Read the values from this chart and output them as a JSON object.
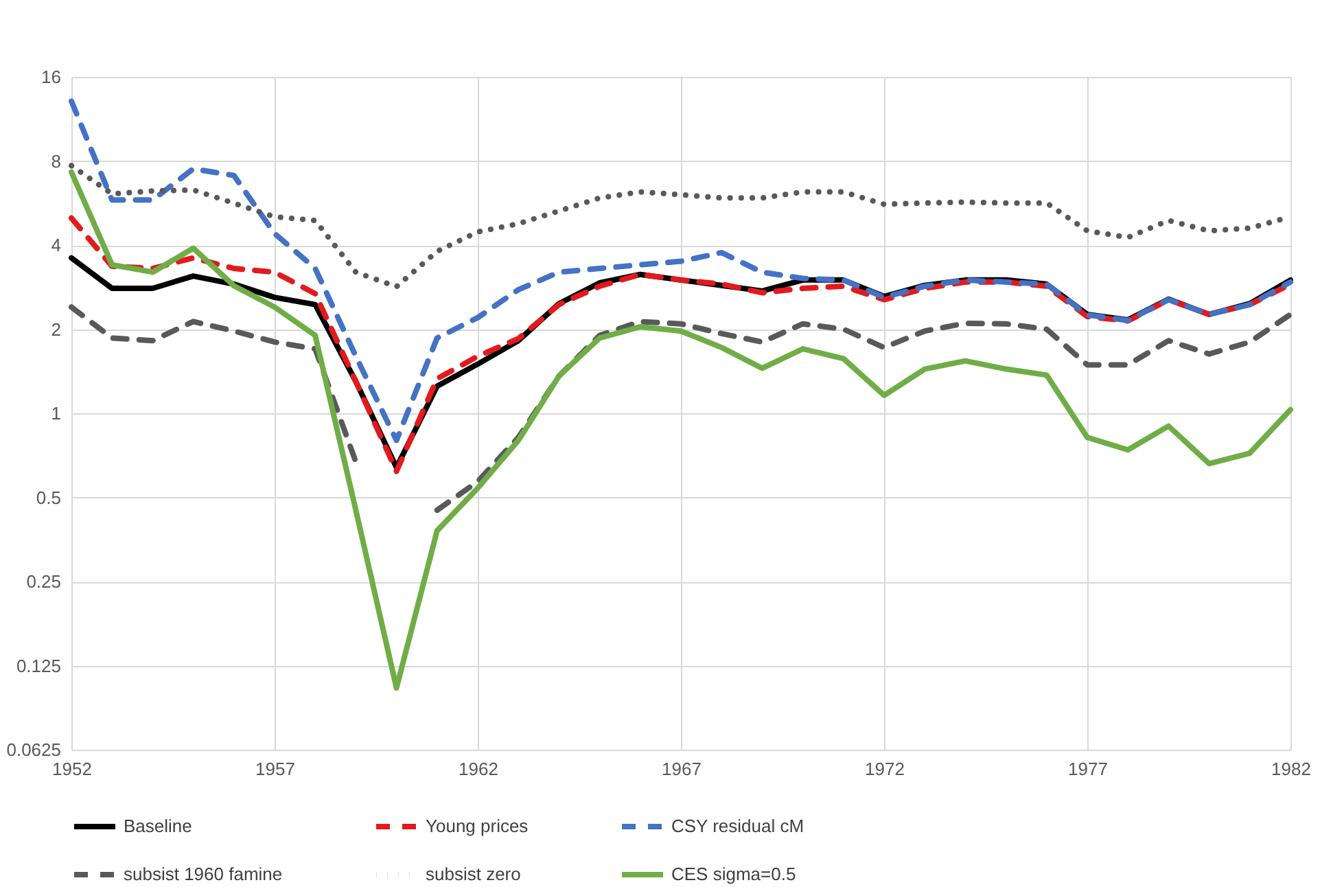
{
  "chart_data": {
    "type": "line",
    "x": [
      1952,
      1953,
      1954,
      1955,
      1956,
      1957,
      1958,
      1959,
      1960,
      1961,
      1962,
      1963,
      1964,
      1965,
      1966,
      1967,
      1968,
      1969,
      1970,
      1971,
      1972,
      1973,
      1974,
      1975,
      1976,
      1977,
      1978,
      1979,
      1980,
      1981,
      1982
    ],
    "log": true,
    "xlim": [
      1952,
      1982
    ],
    "xticks": [
      1952,
      1957,
      1962,
      1967,
      1972,
      1977,
      1982
    ],
    "ylim": [
      0.0625,
      16
    ],
    "yticks": [
      0.0625,
      0.125,
      0.25,
      0.5,
      1,
      2,
      4,
      8,
      16
    ],
    "grid": true,
    "legend": "bottom",
    "series": [
      {
        "name": "Baseline",
        "color": "#000000",
        "line_style": "solid",
        "values": [
          3.6,
          2.8,
          2.8,
          3.1,
          2.9,
          2.6,
          2.45,
          1.3,
          0.64,
          1.25,
          1.5,
          1.82,
          2.47,
          2.93,
          3.14,
          3.0,
          2.87,
          2.74,
          3.0,
          3.0,
          2.62,
          2.87,
          3.0,
          3.0,
          2.9,
          2.26,
          2.16,
          2.56,
          2.26,
          2.47,
          3.0
        ]
      },
      {
        "name": "Young prices",
        "color": "#e31a1c",
        "line_style": "dashed",
        "values": [
          5.0,
          3.36,
          3.3,
          3.6,
          3.3,
          3.2,
          2.68,
          1.3,
          0.62,
          1.33,
          1.6,
          1.85,
          2.45,
          2.85,
          3.14,
          3.0,
          2.9,
          2.7,
          2.8,
          2.85,
          2.55,
          2.8,
          2.95,
          2.95,
          2.85,
          2.22,
          2.14,
          2.55,
          2.26,
          2.45,
          2.9
        ]
      },
      {
        "name": "CSY residual cM",
        "color": "#4472c4",
        "line_style": "dashed",
        "values": [
          13.1,
          5.8,
          5.8,
          7.5,
          7.1,
          4.4,
          3.3,
          1.6,
          0.8,
          1.86,
          2.2,
          2.77,
          3.2,
          3.3,
          3.4,
          3.5,
          3.76,
          3.2,
          3.04,
          3.0,
          2.6,
          2.85,
          3.0,
          2.95,
          2.9,
          2.25,
          2.15,
          2.55,
          2.26,
          2.45,
          2.95
        ]
      },
      {
        "name": "subsist 1960 famine",
        "color": "#595959",
        "line_style": "dashed",
        "values": [
          2.4,
          1.86,
          1.82,
          2.13,
          1.97,
          1.8,
          1.7,
          0.67,
          null,
          0.45,
          0.57,
          0.82,
          1.36,
          1.9,
          2.13,
          2.09,
          1.93,
          1.8,
          2.09,
          2.0,
          1.72,
          1.97,
          2.1,
          2.09,
          2.0,
          1.49,
          1.49,
          1.82,
          1.63,
          1.8,
          2.26
        ]
      },
      {
        "name": "subsist zero",
        "color": "#595959",
        "line_style": "dotted",
        "values": [
          7.7,
          6.1,
          6.25,
          6.3,
          5.65,
          5.05,
          4.9,
          3.2,
          2.84,
          3.8,
          4.46,
          4.77,
          5.3,
          5.9,
          6.2,
          6.06,
          5.9,
          5.9,
          6.2,
          6.2,
          5.6,
          5.66,
          5.7,
          5.66,
          5.66,
          4.5,
          4.26,
          4.9,
          4.5,
          4.6,
          5.05
        ]
      },
      {
        "name": "CES sigma=0.5",
        "color": "#70ad47",
        "line_style": "solid",
        "values": [
          7.3,
          3.4,
          3.2,
          3.9,
          2.86,
          2.4,
          1.9,
          0.45,
          0.104,
          0.38,
          0.54,
          0.8,
          1.36,
          1.86,
          2.04,
          1.97,
          1.72,
          1.45,
          1.7,
          1.57,
          1.16,
          1.44,
          1.54,
          1.44,
          1.37,
          0.82,
          0.74,
          0.9,
          0.66,
          0.72,
          1.03
        ]
      }
    ]
  }
}
